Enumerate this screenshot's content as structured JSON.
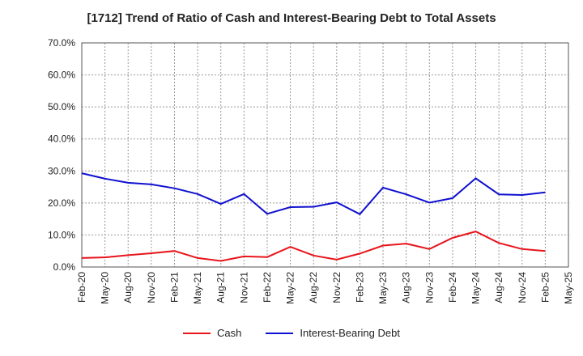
{
  "chart_data": {
    "type": "line",
    "title": "[1712]  Trend of Ratio of Cash and Interest-Bearing Debt to Total Assets",
    "x_ticks": [
      "Feb-20",
      "May-20",
      "Aug-20",
      "Nov-20",
      "Feb-21",
      "May-21",
      "Aug-21",
      "Nov-21",
      "Feb-22",
      "May-22",
      "Aug-22",
      "Nov-22",
      "Feb-23",
      "May-23",
      "Aug-23",
      "Nov-23",
      "Feb-24",
      "May-24",
      "Aug-24",
      "Nov-24",
      "Feb-25",
      "May-25"
    ],
    "y_ticks": [
      "0.0%",
      "10.0%",
      "20.0%",
      "30.0%",
      "40.0%",
      "50.0%",
      "60.0%",
      "70.0%"
    ],
    "ylim": [
      0,
      70
    ],
    "grid": true,
    "legend_position": "bottom",
    "categories": [
      "Feb-20",
      "May-20",
      "Aug-20",
      "Nov-20",
      "Feb-21",
      "May-21",
      "Aug-21",
      "Nov-21",
      "Feb-22",
      "May-22",
      "Aug-22",
      "Nov-22",
      "Feb-23",
      "May-23",
      "Aug-23",
      "Nov-23",
      "Feb-24",
      "May-24",
      "Aug-24",
      "Nov-24",
      "Feb-25"
    ],
    "series": [
      {
        "name": "Cash",
        "color": "#e8141b",
        "values": [
          2.8,
          3.0,
          3.7,
          4.3,
          5.0,
          2.8,
          1.9,
          3.3,
          3.1,
          6.3,
          3.6,
          2.3,
          4.2,
          6.7,
          7.3,
          5.6,
          9.1,
          11.1,
          7.5,
          5.6,
          5.0
        ]
      },
      {
        "name": "Interest-Bearing Debt",
        "color": "#1010d0",
        "values": [
          29.3,
          27.6,
          26.3,
          25.8,
          24.6,
          22.8,
          19.7,
          22.8,
          16.6,
          18.7,
          18.8,
          20.2,
          16.5,
          24.8,
          22.7,
          20.1,
          21.5,
          27.7,
          22.7,
          22.5,
          23.3
        ]
      }
    ]
  }
}
